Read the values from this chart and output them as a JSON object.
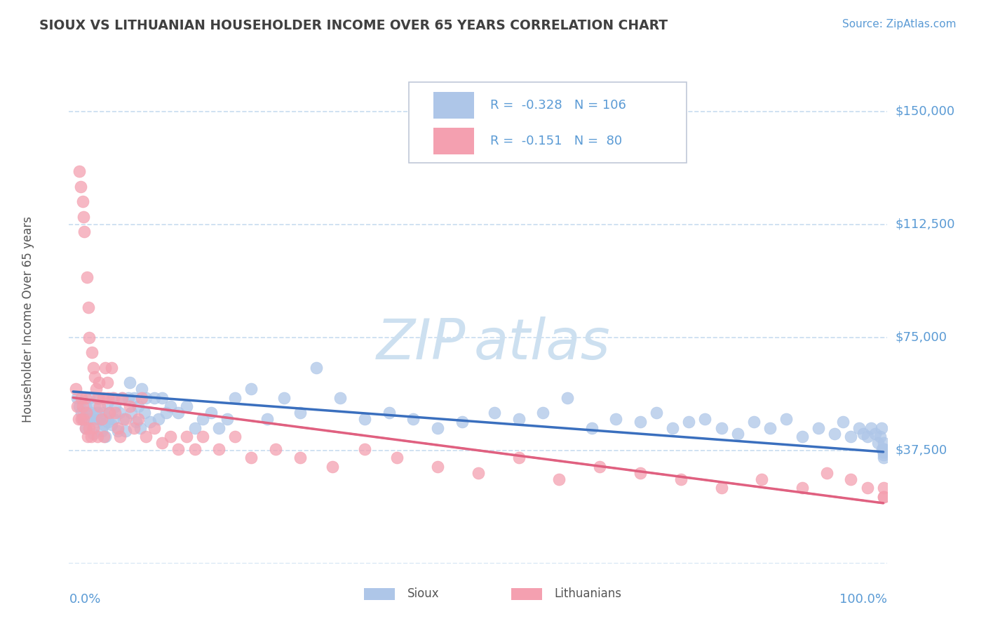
{
  "title": "SIOUX VS LITHUANIAN HOUSEHOLDER INCOME OVER 65 YEARS CORRELATION CHART",
  "source": "Source: ZipAtlas.com",
  "ylabel": "Householder Income Over 65 years",
  "sioux_color": "#aec6e8",
  "sioux_line_color": "#3a6fbe",
  "lithuanian_color": "#f4a0b0",
  "lithuanian_line_color": "#e06080",
  "lithuanian_dash_color": "#d09090",
  "title_color": "#404040",
  "axis_color": "#5b9bd5",
  "grid_color": "#c8ddf0",
  "watermark_color": "#cde0f0",
  "background_color": "#ffffff",
  "sioux_R": -0.328,
  "sioux_N": 106,
  "lithuanian_R": -0.151,
  "lithuanian_N": 80,
  "ylim_low": 0,
  "ylim_high": 162000,
  "xlim_low": -0.005,
  "xlim_high": 1.005,
  "sioux_x": [
    0.005,
    0.008,
    0.01,
    0.012,
    0.015,
    0.015,
    0.017,
    0.018,
    0.02,
    0.022,
    0.025,
    0.025,
    0.027,
    0.028,
    0.03,
    0.032,
    0.033,
    0.035,
    0.037,
    0.038,
    0.04,
    0.042,
    0.043,
    0.045,
    0.047,
    0.048,
    0.05,
    0.052,
    0.055,
    0.057,
    0.06,
    0.062,
    0.065,
    0.068,
    0.07,
    0.072,
    0.075,
    0.078,
    0.08,
    0.083,
    0.085,
    0.088,
    0.09,
    0.095,
    0.1,
    0.105,
    0.11,
    0.115,
    0.12,
    0.13,
    0.14,
    0.15,
    0.16,
    0.17,
    0.18,
    0.19,
    0.2,
    0.22,
    0.24,
    0.26,
    0.28,
    0.3,
    0.33,
    0.36,
    0.39,
    0.42,
    0.45,
    0.48,
    0.52,
    0.55,
    0.58,
    0.61,
    0.64,
    0.67,
    0.7,
    0.72,
    0.74,
    0.76,
    0.78,
    0.8,
    0.82,
    0.84,
    0.86,
    0.88,
    0.9,
    0.92,
    0.94,
    0.95,
    0.96,
    0.97,
    0.975,
    0.98,
    0.985,
    0.99,
    0.993,
    0.996,
    0.998,
    0.999,
    1.0,
    1.0,
    1.0,
    1.0,
    1.0,
    1.0,
    1.0,
    1.0
  ],
  "sioux_y": [
    55000,
    52000,
    50000,
    48000,
    52000,
    45000,
    50000,
    48000,
    55000,
    50000,
    48000,
    43000,
    52000,
    47000,
    50000,
    55000,
    48000,
    44000,
    50000,
    46000,
    42000,
    53000,
    47000,
    50000,
    46000,
    55000,
    48000,
    52000,
    44000,
    50000,
    55000,
    48000,
    44000,
    55000,
    60000,
    50000,
    55000,
    47000,
    52000,
    45000,
    58000,
    50000,
    55000,
    47000,
    55000,
    48000,
    55000,
    50000,
    52000,
    50000,
    52000,
    45000,
    48000,
    50000,
    45000,
    48000,
    55000,
    58000,
    48000,
    55000,
    50000,
    65000,
    55000,
    48000,
    50000,
    48000,
    45000,
    47000,
    50000,
    48000,
    50000,
    55000,
    45000,
    48000,
    47000,
    50000,
    45000,
    47000,
    48000,
    45000,
    43000,
    47000,
    45000,
    48000,
    42000,
    45000,
    43000,
    47000,
    42000,
    45000,
    43000,
    42000,
    45000,
    43000,
    40000,
    42000,
    45000,
    38000,
    37000,
    40000,
    38000,
    37000,
    38000,
    36000,
    35000,
    37000
  ],
  "lithuanian_x": [
    0.003,
    0.005,
    0.007,
    0.008,
    0.009,
    0.01,
    0.01,
    0.012,
    0.012,
    0.013,
    0.013,
    0.014,
    0.015,
    0.015,
    0.016,
    0.017,
    0.018,
    0.019,
    0.02,
    0.02,
    0.022,
    0.023,
    0.025,
    0.025,
    0.027,
    0.028,
    0.03,
    0.03,
    0.032,
    0.033,
    0.035,
    0.037,
    0.038,
    0.04,
    0.042,
    0.043,
    0.045,
    0.047,
    0.05,
    0.052,
    0.055,
    0.058,
    0.06,
    0.065,
    0.07,
    0.075,
    0.08,
    0.085,
    0.09,
    0.1,
    0.11,
    0.12,
    0.13,
    0.14,
    0.15,
    0.16,
    0.18,
    0.2,
    0.22,
    0.25,
    0.28,
    0.32,
    0.36,
    0.4,
    0.45,
    0.5,
    0.55,
    0.6,
    0.65,
    0.7,
    0.75,
    0.8,
    0.85,
    0.9,
    0.93,
    0.96,
    0.98,
    1.0,
    1.0,
    1.0
  ],
  "lithuanian_y": [
    58000,
    52000,
    48000,
    130000,
    125000,
    55000,
    48000,
    120000,
    52000,
    115000,
    48000,
    110000,
    45000,
    55000,
    50000,
    95000,
    42000,
    85000,
    45000,
    75000,
    42000,
    70000,
    65000,
    45000,
    62000,
    58000,
    55000,
    42000,
    60000,
    52000,
    48000,
    55000,
    42000,
    65000,
    60000,
    55000,
    50000,
    65000,
    55000,
    50000,
    45000,
    42000,
    55000,
    48000,
    52000,
    45000,
    48000,
    55000,
    42000,
    45000,
    40000,
    42000,
    38000,
    42000,
    38000,
    42000,
    38000,
    42000,
    35000,
    38000,
    35000,
    32000,
    38000,
    35000,
    32000,
    30000,
    35000,
    28000,
    32000,
    30000,
    28000,
    25000,
    28000,
    25000,
    30000,
    28000,
    25000,
    22000,
    25000,
    22000
  ]
}
